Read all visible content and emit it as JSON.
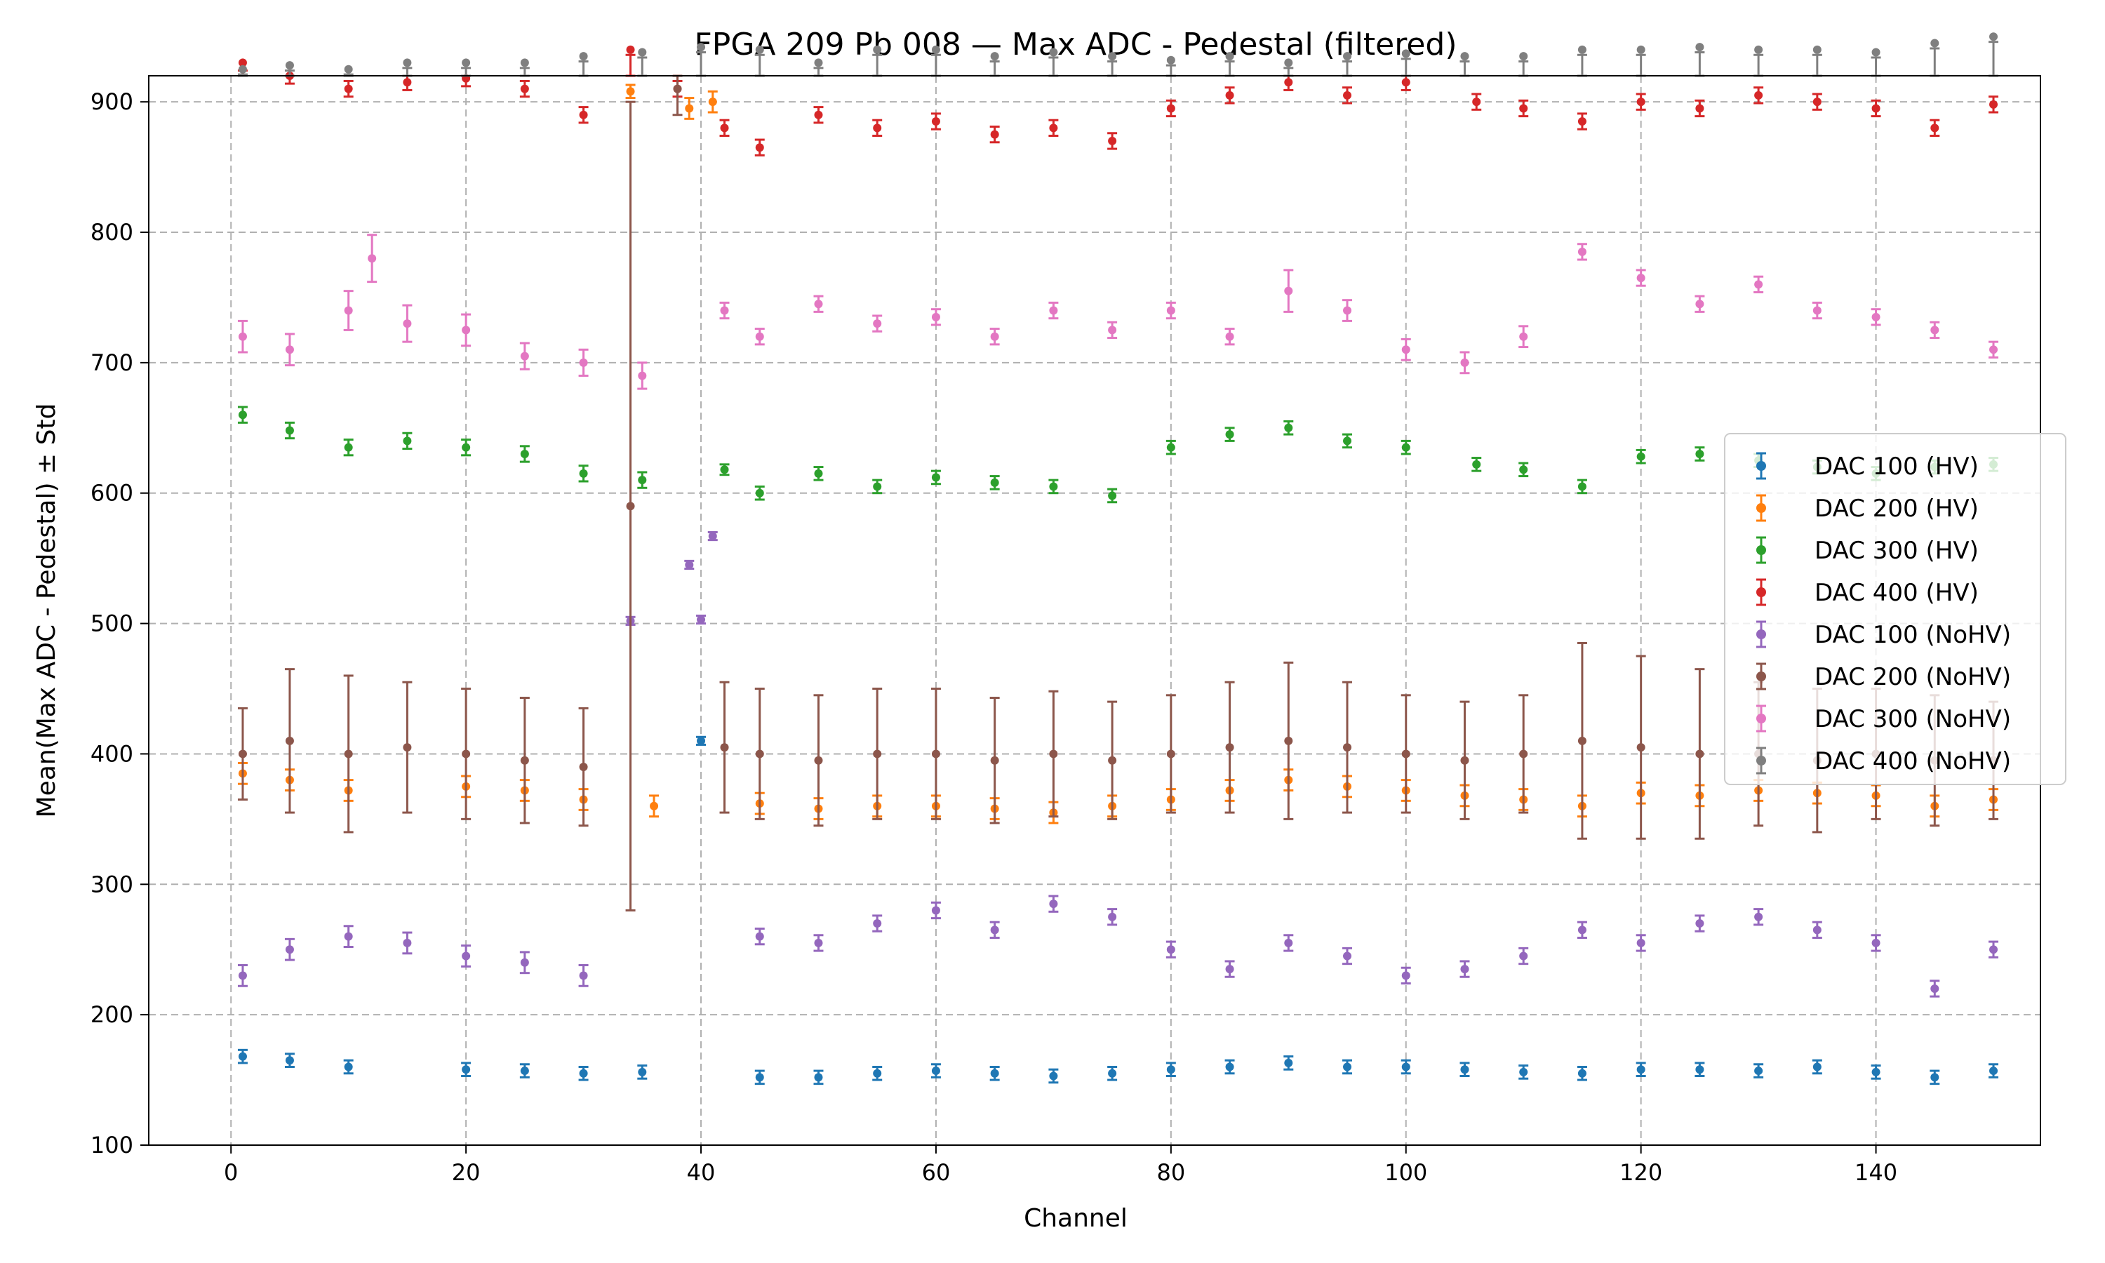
{
  "chart_data": {
    "type": "scatter",
    "title": "FPGA 209 Pb 008 — Max ADC - Pedestal (filtered)",
    "xlabel": "Channel",
    "ylabel": "Mean(Max ADC - Pedestal) ± Std",
    "xlim": [
      -7,
      154
    ],
    "ylim": [
      100,
      920
    ],
    "xticks": [
      "0",
      "20",
      "40",
      "60",
      "80",
      "100",
      "120",
      "140"
    ],
    "xtick_values": [
      0,
      20,
      40,
      60,
      80,
      100,
      120,
      140
    ],
    "yticks": [
      "100",
      "200",
      "300",
      "400",
      "500",
      "600",
      "700",
      "800",
      "900"
    ],
    "ytick_values": [
      100,
      200,
      300,
      400,
      500,
      600,
      700,
      800,
      900
    ],
    "grid": true,
    "legend_position": "center-right",
    "series": [
      {
        "name": "DAC 100 (HV)",
        "color": "#1f77b4",
        "x": [
          1,
          5,
          10,
          20,
          25,
          30,
          35,
          40,
          45,
          50,
          55,
          60,
          65,
          70,
          75,
          80,
          85,
          90,
          95,
          100,
          105,
          110,
          115,
          120,
          125,
          130,
          135,
          140,
          145,
          150
        ],
        "y": [
          168,
          165,
          160,
          158,
          157,
          155,
          156,
          410,
          152,
          152,
          155,
          157,
          155,
          153,
          155,
          158,
          160,
          163,
          160,
          160,
          158,
          156,
          155,
          158,
          158,
          157,
          160,
          156,
          152,
          157
        ],
        "err": [
          5,
          5,
          5,
          5,
          5,
          5,
          5,
          3,
          5,
          5,
          5,
          5,
          5,
          5,
          5,
          5,
          5,
          5,
          5,
          5,
          5,
          5,
          5,
          5,
          5,
          5,
          5,
          5,
          5,
          5
        ]
      },
      {
        "name": "DAC 200 (HV)",
        "color": "#ff7f0e",
        "x": [
          1,
          5,
          10,
          20,
          25,
          30,
          34,
          36,
          39,
          41,
          45,
          50,
          55,
          60,
          65,
          70,
          75,
          80,
          85,
          90,
          95,
          100,
          105,
          110,
          115,
          120,
          125,
          130,
          135,
          140,
          145,
          150
        ],
        "y": [
          385,
          380,
          372,
          375,
          372,
          365,
          908,
          360,
          895,
          900,
          362,
          358,
          360,
          360,
          358,
          355,
          360,
          365,
          372,
          380,
          375,
          372,
          368,
          365,
          360,
          370,
          368,
          372,
          370,
          368,
          360,
          365
        ],
        "err": [
          8,
          8,
          8,
          8,
          8,
          8,
          5,
          8,
          8,
          8,
          8,
          8,
          8,
          8,
          8,
          8,
          8,
          8,
          8,
          8,
          8,
          8,
          8,
          8,
          8,
          8,
          8,
          8,
          8,
          8,
          8,
          8
        ]
      },
      {
        "name": "DAC 300 (HV)",
        "color": "#2ca02c",
        "x": [
          1,
          5,
          10,
          15,
          20,
          25,
          30,
          35,
          42,
          45,
          50,
          55,
          60,
          65,
          70,
          75,
          80,
          85,
          90,
          95,
          100,
          106,
          110,
          115,
          120,
          125,
          130,
          135,
          140,
          145,
          150
        ],
        "y": [
          660,
          648,
          635,
          640,
          635,
          630,
          615,
          610,
          618,
          600,
          615,
          605,
          612,
          608,
          605,
          598,
          635,
          645,
          650,
          640,
          635,
          622,
          618,
          605,
          628,
          630,
          625,
          620,
          615,
          620,
          622
        ],
        "err": [
          6,
          6,
          6,
          6,
          6,
          6,
          6,
          6,
          4,
          5,
          5,
          5,
          5,
          5,
          5,
          5,
          5,
          5,
          5,
          5,
          5,
          5,
          5,
          5,
          5,
          5,
          5,
          5,
          5,
          5,
          5
        ]
      },
      {
        "name": "DAC 400 (HV)",
        "color": "#d62728",
        "x": [
          1,
          5,
          10,
          15,
          20,
          25,
          30,
          34,
          38,
          42,
          45,
          50,
          55,
          60,
          65,
          70,
          75,
          80,
          85,
          90,
          95,
          100,
          106,
          110,
          115,
          120,
          125,
          130,
          135,
          140,
          145,
          150
        ],
        "y": [
          930,
          920,
          910,
          915,
          918,
          910,
          890,
          940,
          910,
          880,
          865,
          890,
          880,
          885,
          875,
          880,
          870,
          895,
          905,
          915,
          905,
          915,
          900,
          895,
          885,
          900,
          895,
          905,
          900,
          895,
          880,
          898
        ],
        "err": [
          6,
          6,
          6,
          6,
          6,
          6,
          6,
          4,
          6,
          6,
          6,
          6,
          6,
          6,
          6,
          6,
          6,
          6,
          6,
          6,
          6,
          6,
          6,
          6,
          6,
          6,
          6,
          6,
          6,
          6,
          6,
          6
        ]
      },
      {
        "name": "DAC 100 (NoHV)",
        "color": "#9467bd",
        "x": [
          1,
          5,
          10,
          15,
          20,
          25,
          30,
          34,
          39,
          40,
          41,
          45,
          50,
          55,
          60,
          65,
          70,
          75,
          80,
          85,
          90,
          95,
          100,
          105,
          110,
          115,
          120,
          125,
          130,
          135,
          140,
          145,
          150
        ],
        "y": [
          230,
          250,
          260,
          255,
          245,
          240,
          230,
          502,
          545,
          503,
          567,
          260,
          255,
          270,
          280,
          265,
          285,
          275,
          250,
          235,
          255,
          245,
          230,
          235,
          245,
          265,
          255,
          270,
          275,
          265,
          255,
          220,
          250
        ],
        "err": [
          8,
          8,
          8,
          8,
          8,
          8,
          8,
          3,
          3,
          3,
          3,
          6,
          6,
          6,
          6,
          6,
          6,
          6,
          6,
          6,
          6,
          6,
          6,
          6,
          6,
          6,
          6,
          6,
          6,
          6,
          6,
          6,
          6
        ]
      },
      {
        "name": "DAC 200 (NoHV)",
        "color": "#8c564b",
        "x": [
          1,
          5,
          10,
          15,
          20,
          25,
          30,
          34,
          38,
          42,
          45,
          50,
          55,
          60,
          65,
          70,
          75,
          80,
          85,
          90,
          95,
          100,
          105,
          110,
          115,
          120,
          125,
          130,
          135,
          140,
          145,
          150
        ],
        "y": [
          400,
          410,
          400,
          405,
          400,
          395,
          390,
          590,
          910,
          405,
          400,
          395,
          400,
          400,
          395,
          400,
          395,
          400,
          405,
          410,
          405,
          400,
          395,
          400,
          410,
          405,
          400,
          400,
          395,
          400,
          395,
          395
        ],
        "err": [
          35,
          55,
          60,
          50,
          50,
          48,
          45,
          310,
          20,
          50,
          50,
          50,
          50,
          50,
          48,
          48,
          45,
          45,
          50,
          60,
          50,
          45,
          45,
          45,
          75,
          70,
          65,
          55,
          55,
          50,
          50,
          45
        ]
      },
      {
        "name": "DAC 300 (NoHV)",
        "color": "#e377c2",
        "x": [
          1,
          5,
          10,
          12,
          15,
          20,
          25,
          30,
          35,
          42,
          45,
          50,
          55,
          60,
          65,
          70,
          75,
          80,
          85,
          90,
          95,
          100,
          105,
          110,
          115,
          120,
          125,
          130,
          135,
          140,
          145,
          150
        ],
        "y": [
          720,
          710,
          740,
          780,
          730,
          725,
          705,
          700,
          690,
          740,
          720,
          745,
          730,
          735,
          720,
          740,
          725,
          740,
          720,
          755,
          740,
          710,
          700,
          720,
          785,
          765,
          745,
          760,
          740,
          735,
          725,
          710
        ],
        "err": [
          12,
          12,
          15,
          18,
          14,
          12,
          10,
          10,
          10,
          6,
          6,
          6,
          6,
          6,
          6,
          6,
          6,
          6,
          6,
          16,
          8,
          8,
          8,
          8,
          6,
          6,
          6,
          6,
          6,
          6,
          6,
          6
        ]
      },
      {
        "name": "DAC 400 (NoHV)",
        "color": "#7f7f7f",
        "x": [
          1,
          5,
          10,
          15,
          20,
          25,
          30,
          35,
          40,
          45,
          50,
          55,
          60,
          65,
          70,
          75,
          80,
          85,
          90,
          95,
          100,
          105,
          110,
          115,
          120,
          125,
          130,
          135,
          140,
          145,
          150
        ],
        "y": [
          925,
          928,
          925,
          930,
          930,
          930,
          935,
          938,
          942,
          940,
          930,
          940,
          940,
          935,
          938,
          935,
          932,
          935,
          930,
          935,
          937,
          935,
          935,
          940,
          940,
          942,
          940,
          940,
          938,
          945,
          950
        ],
        "err": [
          4,
          4,
          4,
          4,
          4,
          4,
          4,
          4,
          4,
          4,
          4,
          4,
          4,
          4,
          4,
          4,
          4,
          4,
          4,
          4,
          4,
          4,
          4,
          4,
          4,
          4,
          4,
          4,
          4,
          4,
          4
        ]
      }
    ]
  }
}
